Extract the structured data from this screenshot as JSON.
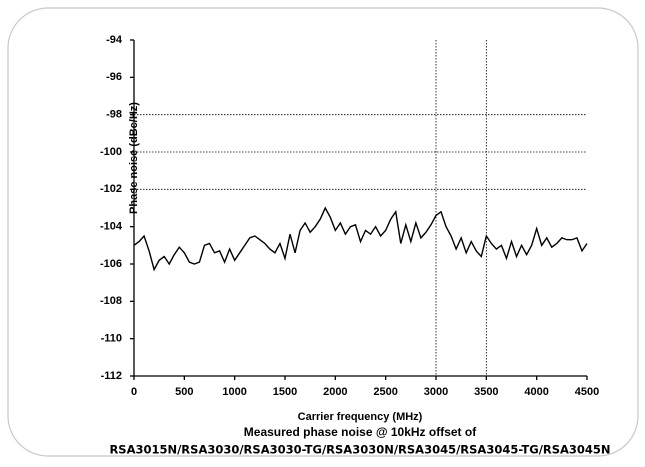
{
  "chart_data": {
    "type": "line",
    "title": "Measured phase noise @ 10kHz offset of",
    "subtitle": "RSA3015N/RSA3030/RSA3030-TG/RSA3030N/RSA3045/RSA3045-TG/RSA3045N",
    "x_label": "Carrier frequency (MHz)",
    "y_label": "Phase noise (dBc/Hz)",
    "color": "#000000",
    "x": [
      0,
      50,
      100,
      150,
      200,
      250,
      300,
      350,
      400,
      450,
      500,
      550,
      600,
      650,
      700,
      750,
      800,
      850,
      900,
      950,
      1000,
      1050,
      1100,
      1150,
      1200,
      1250,
      1300,
      1350,
      1400,
      1450,
      1500,
      1550,
      1600,
      1650,
      1700,
      1750,
      1800,
      1850,
      1900,
      1950,
      2000,
      2050,
      2100,
      2150,
      2200,
      2250,
      2300,
      2350,
      2400,
      2450,
      2500,
      2550,
      2600,
      2650,
      2700,
      2750,
      2800,
      2850,
      2900,
      2950,
      3000,
      3050,
      3100,
      3150,
      3200,
      3250,
      3300,
      3350,
      3400,
      3450,
      3500,
      3550,
      3600,
      3650,
      3700,
      3750,
      3800,
      3850,
      3900,
      3950,
      4000,
      4050,
      4100,
      4150,
      4200,
      4250,
      4300,
      4350,
      4400,
      4450,
      4500
    ],
    "values": [
      -105.0,
      -104.8,
      -104.5,
      -105.3,
      -106.3,
      -105.8,
      -105.6,
      -106.0,
      -105.5,
      -105.1,
      -105.4,
      -105.9,
      -106.0,
      -105.9,
      -105.0,
      -104.9,
      -105.4,
      -105.3,
      -105.9,
      -105.2,
      -105.8,
      -105.4,
      -105.0,
      -104.6,
      -104.5,
      -104.7,
      -104.9,
      -105.2,
      -105.4,
      -104.9,
      -105.7,
      -104.4,
      -105.4,
      -104.2,
      -103.8,
      -104.3,
      -104.0,
      -103.6,
      -103.0,
      -103.5,
      -104.2,
      -103.8,
      -104.4,
      -104.0,
      -103.9,
      -104.8,
      -104.2,
      -104.4,
      -104.0,
      -104.5,
      -104.2,
      -103.6,
      -103.2,
      -104.9,
      -103.9,
      -104.8,
      -103.8,
      -104.6,
      -104.3,
      -103.9,
      -103.4,
      -103.2,
      -104.0,
      -104.5,
      -105.2,
      -104.6,
      -105.4,
      -104.8,
      -105.3,
      -105.6,
      -104.5,
      -104.9,
      -105.2,
      -105.0,
      -105.7,
      -104.8,
      -105.6,
      -105.0,
      -105.5,
      -105.0,
      -104.1,
      -105.0,
      -104.6,
      -105.1,
      -104.9,
      -104.6,
      -104.7,
      -104.7,
      -104.6,
      -105.3,
      -104.9
    ],
    "xlim": [
      0,
      4500
    ],
    "ylim": [
      -112,
      -94
    ],
    "xticks": [
      0,
      500,
      1000,
      1500,
      2000,
      2500,
      3000,
      3500,
      4000,
      4500
    ],
    "yticks": [
      -94,
      -96,
      -98,
      -100,
      -102,
      -104,
      -106,
      -108,
      -110,
      -112
    ],
    "x_grid_lines": [
      3000,
      3500
    ],
    "y_grid_lines": [
      -98,
      -100,
      -102
    ]
  }
}
